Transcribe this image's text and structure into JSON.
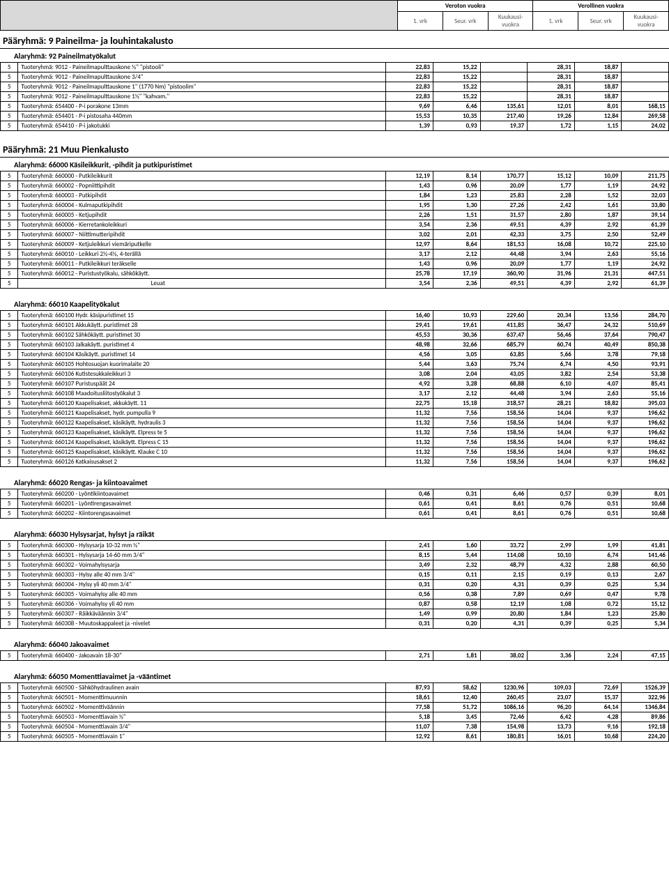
{
  "header": {
    "group1": "Veroton vuokra",
    "group2": "Verollinen vuokra",
    "sub1": "1. vrk",
    "sub2": "Seur. vrk",
    "sub3": "Kuukausi-vuokra"
  },
  "sections": [
    {
      "title": "Pääryhmä: 9 Paineilma- ja louhintakalusto",
      "subgroups": [
        {
          "title": "Alaryhmä: 92 Paineilmatyökalut",
          "rows": [
            {
              "i": "5",
              "d": "Tuoteryhmä: 9012 - Paineilmapulttauskone  ½\" \"pistooli\"",
              "v": [
                "22,83",
                "15,22",
                "",
                "28,31",
                "18,87",
                ""
              ]
            },
            {
              "i": "5",
              "d": "Tuoteryhmä: 9012 - Paineilmapulttauskone 3/4\"",
              "v": [
                "22,83",
                "15,22",
                "",
                "28,31",
                "18,87",
                ""
              ]
            },
            {
              "i": "5",
              "d": "Tuoteryhmä: 9012 - Paineilmapulttauskone 1\" (1770 Nm) \"pistoolim\"",
              "v": [
                "22,83",
                "15,22",
                "",
                "28,31",
                "18,87",
                ""
              ]
            },
            {
              "i": "5",
              "d": "Tuoteryhmä: 9012 - Paineilmapulttauskone 1½\" \"kahvam.\"",
              "v": [
                "22,83",
                "15,22",
                "",
                "28,31",
                "18,87",
                ""
              ]
            },
            {
              "i": "5",
              "d": "Tuoteryhmä: 654400 - P-i porakone 13mm",
              "v": [
                "9,69",
                "6,46",
                "135,61",
                "12,01",
                "8,01",
                "168,15"
              ]
            },
            {
              "i": "5",
              "d": "Tuoteryhmä: 654401 - P-i pistosaha 440mm",
              "v": [
                "15,53",
                "10,35",
                "217,40",
                "19,26",
                "12,84",
                "269,58"
              ]
            },
            {
              "i": "5",
              "d": "Tuoteryhmä: 654410 - P-i jakotukki",
              "v": [
                "1,39",
                "0,93",
                "19,37",
                "1,72",
                "1,15",
                "24,02"
              ]
            }
          ]
        }
      ]
    },
    {
      "title": "Pääryhmä: 21 Muu Pienkalusto",
      "subgroups": [
        {
          "title": "Alaryhmä: 66000 Käsileikkurit, -pihdit ja putkipuristimet",
          "rows": [
            {
              "i": "5",
              "d": "Tuoteryhmä: 660000 - Putkileikkurit",
              "v": [
                "12,19",
                "8,14",
                "170,77",
                "15,12",
                "10,09",
                "211,75"
              ]
            },
            {
              "i": "5",
              "d": "Tuoteryhmä: 660002 - Popniittipihdit",
              "v": [
                "1,43",
                "0,96",
                "20,09",
                "1,77",
                "1,19",
                "24,92"
              ]
            },
            {
              "i": "5",
              "d": "Tuoteryhmä: 660003 - Putkipihdit",
              "v": [
                "1,84",
                "1,23",
                "25,83",
                "2,28",
                "1,52",
                "32,03"
              ]
            },
            {
              "i": "5",
              "d": "Tuoteryhmä: 660004 - Kulmaputkipihdit",
              "v": [
                "1,95",
                "1,30",
                "27,26",
                "2,42",
                "1,61",
                "33,80"
              ]
            },
            {
              "i": "5",
              "d": "Tuoteryhmä: 660005 - Ketjupihdit",
              "v": [
                "2,26",
                "1,51",
                "31,57",
                "2,80",
                "1,87",
                "39,14"
              ]
            },
            {
              "i": "5",
              "d": "Tuoteryhmä: 660006 - Kierretankoleikkuri",
              "v": [
                "3,54",
                "2,36",
                "49,51",
                "4,39",
                "2,92",
                "61,39"
              ]
            },
            {
              "i": "5",
              "d": "Tuoteryhmä: 660007 - Niittimutteripihdit",
              "v": [
                "3,02",
                "2,01",
                "42,33",
                "3,75",
                "2,50",
                "52,49"
              ]
            },
            {
              "i": "5",
              "d": "Tuoteryhmä: 660009 - Ketjuleikkuri viemäriputkelle",
              "v": [
                "12,97",
                "8,64",
                "181,53",
                "16,08",
                "10,72",
                "225,10"
              ]
            },
            {
              "i": "5",
              "d": "Tuoteryhmä: 660010 - Leikkuri 2½-4½, 4-terällä",
              "v": [
                "3,17",
                "2,12",
                "44,48",
                "3,94",
                "2,63",
                "55,16"
              ]
            },
            {
              "i": "5",
              "d": "Tuoteryhmä: 660011 - Putkileikkuri teräkselle",
              "v": [
                "1,43",
                "0,96",
                "20,09",
                "1,77",
                "1,19",
                "24,92"
              ]
            },
            {
              "i": "5",
              "d": "Tuoteryhmä: 660012 - Puristustyökalu, sähkökäytt.",
              "v": [
                "25,78",
                "17,19",
                "360,90",
                "31,96",
                "21,31",
                "447,51"
              ]
            },
            {
              "i": "5",
              "d": "Leuat",
              "center": true,
              "v": [
                "3,54",
                "2,36",
                "49,51",
                "4,39",
                "2,92",
                "61,39"
              ]
            }
          ]
        },
        {
          "title": "Alaryhmä: 66010 Kaapelityökalut",
          "rows": [
            {
              "i": "5",
              "d": "Tuoteryhmä: 660100 Hydr. käsipuristimet 15",
              "v": [
                "16,40",
                "10,93",
                "229,60",
                "20,34",
                "13,56",
                "284,70"
              ]
            },
            {
              "i": "5",
              "d": "Tuoteryhmä: 660101 Akkukäytt. puristimet 28",
              "v": [
                "29,41",
                "19,61",
                "411,85",
                "36,47",
                "24,32",
                "510,69"
              ]
            },
            {
              "i": "5",
              "d": "Tuoteryhmä: 660102 Sähkökäytt. puristimet 30",
              "v": [
                "45,53",
                "30,36",
                "637,47",
                "56,46",
                "37,64",
                "790,47"
              ]
            },
            {
              "i": "5",
              "d": "Tuoteryhmä: 660103 Jalkakäytt. puristimet 4",
              "v": [
                "48,98",
                "32,66",
                "685,79",
                "60,74",
                "40,49",
                "850,38"
              ]
            },
            {
              "i": "5",
              "d": "Tuoteryhmä: 660104 Käsikäytt. puristimet 14",
              "v": [
                "4,56",
                "3,05",
                "63,85",
                "5,66",
                "3,78",
                "79,18"
              ]
            },
            {
              "i": "5",
              "d": "Tuoteryhmä: 660105 Hohtosuojan kuorimalaite 20",
              "v": [
                "5,44",
                "3,63",
                "75,74",
                "6,74",
                "4,50",
                "93,91"
              ]
            },
            {
              "i": "5",
              "d": "Tuoteryhmä: 660106 Kutistesukkaleikkuri 3",
              "v": [
                "3,08",
                "2,04",
                "43,05",
                "3,82",
                "2,54",
                "53,38"
              ]
            },
            {
              "i": "5",
              "d": "Tuoteryhmä: 660107 Puristuspäät 24",
              "v": [
                "4,92",
                "3,28",
                "68,88",
                "6,10",
                "4,07",
                "85,41"
              ]
            },
            {
              "i": "5",
              "d": "Tuoteryhmä: 660108 Maadoitusliitostyökalut 3",
              "v": [
                "3,17",
                "2,12",
                "44,48",
                "3,94",
                "2,63",
                "55,16"
              ]
            },
            {
              "i": "5",
              "d": "Tuoteryhmä: 660120 Kaapelisakset, akkukäytt. 11",
              "v": [
                "22,75",
                "15,18",
                "318,57",
                "28,21",
                "18,82",
                "395,03"
              ]
            },
            {
              "i": "5",
              "d": "Tuoteryhmä: 660121 Kaapelisakset, hydr. pumpulla 9",
              "v": [
                "11,32",
                "7,56",
                "158,56",
                "14,04",
                "9,37",
                "196,62"
              ]
            },
            {
              "i": "5",
              "d": "Tuoteryhmä: 660122 Kaapelisakset, käsikäytt. hydraulis 3",
              "v": [
                "11,32",
                "7,56",
                "158,56",
                "14,04",
                "9,37",
                "196,62"
              ]
            },
            {
              "i": "5",
              "d": "Tuoteryhmä: 660123 Kaapelisakset, käsikäytt. Elpress te 5",
              "v": [
                "11,32",
                "7,56",
                "158,56",
                "14,04",
                "9,37",
                "196,62"
              ]
            },
            {
              "i": "5",
              "d": "Tuoteryhmä: 660124 Kaapelisakset, käsikäytt. Elpress C 15",
              "v": [
                "11,32",
                "7,56",
                "158,56",
                "14,04",
                "9,37",
                "196,62"
              ]
            },
            {
              "i": "5",
              "d": "Tuoteryhmä: 660125 Kaapelisakset, käsikäytt. Klauke C 10",
              "v": [
                "11,32",
                "7,56",
                "158,56",
                "14,04",
                "9,37",
                "196,62"
              ]
            },
            {
              "i": "5",
              "d": "Tuoteryhmä: 660126 Katkaisusakset 2",
              "v": [
                "11,32",
                "7,56",
                "158,56",
                "14,04",
                "9,37",
                "196,62"
              ]
            }
          ]
        },
        {
          "title": "Alaryhmä: 66020 Rengas- ja kiintoavaimet",
          "rows": [
            {
              "i": "5",
              "d": "Tuoteryhmä: 660200 - Lyöntikiintoavaimet",
              "v": [
                "0,46",
                "0,31",
                "6,46",
                "0,57",
                "0,39",
                "8,01"
              ]
            },
            {
              "i": "5",
              "d": "Tuoteryhmä: 660201 - Lyöntirengasavaimet",
              "v": [
                "0,61",
                "0,41",
                "8,61",
                "0,76",
                "0,51",
                "10,68"
              ]
            },
            {
              "i": "5",
              "d": "Tuoteryhmä: 660202 - Kiintorengasavaimet",
              "v": [
                "0,61",
                "0,41",
                "8,61",
                "0,76",
                "0,51",
                "10,68"
              ]
            }
          ]
        },
        {
          "title": "Alaryhmä: 66030 Hylsysarjat, hylsyt ja räikät",
          "rows": [
            {
              "i": "5",
              "d": "Tuoteryhmä: 660300 - Hylsysarja 10-32 mm ½\"",
              "v": [
                "2,41",
                "1,60",
                "33,72",
                "2,99",
                "1,99",
                "41,81"
              ]
            },
            {
              "i": "5",
              "d": "Tuoteryhmä: 660301 - Hylsysarja 14-60 mm 3/4\"",
              "v": [
                "8,15",
                "5,44",
                "114,08",
                "10,10",
                "6,74",
                "141,46"
              ]
            },
            {
              "i": "5",
              "d": "Tuoteryhmä: 660302 - Voimahylsysarja",
              "v": [
                "3,49",
                "2,32",
                "48,79",
                "4,32",
                "2,88",
                "60,50"
              ]
            },
            {
              "i": "5",
              "d": "Tuoteryhmä: 660303 - Hylsy alle 40 mm 3/4\"",
              "v": [
                "0,15",
                "0,11",
                "2,15",
                "0,19",
                "0,13",
                "2,67"
              ]
            },
            {
              "i": "5",
              "d": "Tuoteryhmä: 660304 - Hylsy yli 40 mm 3/4\"",
              "v": [
                "0,31",
                "0,20",
                "4,31",
                "0,39",
                "0,25",
                "5,34"
              ]
            },
            {
              "i": "5",
              "d": "Tuoteryhmä: 660305 - Voimahylsy alle 40 mm",
              "v": [
                "0,56",
                "0,38",
                "7,89",
                "0,69",
                "0,47",
                "9,78"
              ]
            },
            {
              "i": "5",
              "d": "Tuoteryhmä: 660306 - Voimahylsy yli 40 mm",
              "v": [
                "0,87",
                "0,58",
                "12,19",
                "1,08",
                "0,72",
                "15,12"
              ]
            },
            {
              "i": "5",
              "d": "Tuoteryhmä: 660307 - Räikkäväännin 3/4\"",
              "v": [
                "1,49",
                "0,99",
                "20,80",
                "1,84",
                "1,23",
                "25,80"
              ]
            },
            {
              "i": "5",
              "d": "Tuoteryhmä: 660308 - Muutoskappaleet ja -nivelet",
              "v": [
                "0,31",
                "0,20",
                "4,31",
                "0,39",
                "0,25",
                "5,34"
              ]
            }
          ]
        },
        {
          "title": "Alaryhmä: 66040 Jakoavaimet",
          "rows": [
            {
              "i": "5",
              "d": "Tuoteryhmä: 660400 - Jakoavain 18-30\"",
              "v": [
                "2,71",
                "1,81",
                "38,02",
                "3,36",
                "2,24",
                "47,15"
              ]
            }
          ]
        },
        {
          "title": "Alaryhmä: 66050 Momenttiavaimet ja -vääntimet",
          "rows": [
            {
              "i": "5",
              "d": "Tuoteryhmä: 660500 - Sähköhydraulinen avain",
              "v": [
                "87,93",
                "58,62",
                "1230,96",
                "109,03",
                "72,69",
                "1526,39"
              ]
            },
            {
              "i": "5",
              "d": "Tuoteryhmä: 660501 - Momenttimuunnin",
              "v": [
                "18,61",
                "12,40",
                "260,45",
                "23,07",
                "15,37",
                "322,96"
              ]
            },
            {
              "i": "5",
              "d": "Tuoteryhmä: 660502 - Momenttiväännin",
              "v": [
                "77,58",
                "51,72",
                "1086,16",
                "96,20",
                "64,14",
                "1346,84"
              ]
            },
            {
              "i": "5",
              "d": "Tuoteryhmä: 660503 - Momenttiavain ½\"",
              "v": [
                "5,18",
                "3,45",
                "72,46",
                "6,42",
                "4,28",
                "89,86"
              ]
            },
            {
              "i": "5",
              "d": "Tuoteryhmä: 660504 - Momenttiavain 3/4\"",
              "v": [
                "11,07",
                "7,38",
                "154,98",
                "13,73",
                "9,16",
                "192,18"
              ]
            },
            {
              "i": "5",
              "d": "Tuoteryhmä: 660505 - Momenttiavain 1\"",
              "v": [
                "12,92",
                "8,61",
                "180,81",
                "16,01",
                "10,68",
                "224,20"
              ]
            }
          ]
        }
      ]
    }
  ]
}
